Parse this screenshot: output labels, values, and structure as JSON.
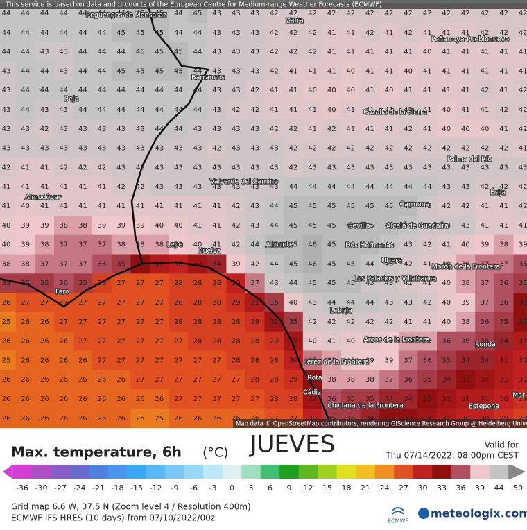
{
  "header": {
    "attribution": "This service is based on data and products of the European Centre for Medium-range Weather Forecasts (ECMWF)",
    "map_credit": "Map data © OpenStreetMap contributors, rendering GIScience Research Group @ Heidelberg University"
  },
  "grid": {
    "rows": [
      [
        44,
        44,
        44,
        44,
        44,
        44,
        44,
        45,
        45,
        44,
        45,
        43,
        43,
        43,
        42,
        42,
        42,
        42,
        42,
        42,
        42,
        42,
        42,
        42,
        42,
        42,
        42,
        42
      ],
      [
        44,
        44,
        44,
        44,
        44,
        44,
        45,
        45,
        45,
        44,
        44,
        43,
        43,
        43,
        42,
        42,
        42,
        41,
        41,
        42,
        41,
        42,
        41,
        41,
        41,
        42,
        42,
        42
      ],
      [
        44,
        44,
        43,
        43,
        44,
        44,
        44,
        45,
        45,
        45,
        44,
        43,
        43,
        43,
        42,
        42,
        42,
        41,
        41,
        41,
        41,
        41,
        40,
        41,
        41,
        41,
        41,
        41
      ],
      [
        43,
        44,
        44,
        43,
        44,
        44,
        45,
        45,
        45,
        45,
        44,
        43,
        43,
        43,
        42,
        41,
        41,
        41,
        40,
        41,
        41,
        40,
        41,
        41,
        41,
        41,
        41,
        41
      ],
      [
        43,
        44,
        44,
        44,
        44,
        44,
        44,
        44,
        44,
        44,
        44,
        43,
        43,
        42,
        41,
        41,
        40,
        40,
        40,
        41,
        40,
        41,
        41,
        41,
        41,
        42,
        41,
        42
      ],
      [
        43,
        44,
        43,
        43,
        44,
        44,
        44,
        44,
        44,
        44,
        44,
        43,
        42,
        42,
        41,
        41,
        41,
        40,
        41,
        41,
        41,
        42,
        41,
        40,
        41,
        41,
        42,
        42
      ],
      [
        43,
        43,
        42,
        43,
        43,
        43,
        43,
        43,
        44,
        44,
        43,
        43,
        43,
        43,
        42,
        42,
        41,
        42,
        41,
        41,
        41,
        42,
        41,
        40,
        40,
        40,
        41,
        42
      ],
      [
        43,
        43,
        43,
        43,
        43,
        43,
        43,
        43,
        43,
        43,
        43,
        42,
        43,
        43,
        43,
        42,
        42,
        42,
        42,
        42,
        42,
        42,
        42,
        42,
        42,
        42,
        42,
        41
      ],
      [
        42,
        41,
        41,
        42,
        42,
        42,
        43,
        43,
        43,
        43,
        43,
        43,
        43,
        43,
        43,
        42,
        43,
        43,
        43,
        43,
        43,
        43,
        43,
        43,
        43,
        43,
        43,
        43
      ],
      [
        41,
        41,
        41,
        41,
        41,
        41,
        42,
        42,
        43,
        43,
        43,
        43,
        43,
        43,
        43,
        44,
        44,
        44,
        44,
        44,
        44,
        44,
        44,
        43,
        43,
        42,
        42,
        42
      ],
      [
        41,
        40,
        41,
        41,
        41,
        41,
        41,
        41,
        41,
        41,
        41,
        41,
        42,
        43,
        44,
        45,
        45,
        45,
        45,
        45,
        45,
        45,
        43,
        42,
        42,
        41,
        41,
        42
      ],
      [
        40,
        39,
        39,
        38,
        38,
        39,
        39,
        39,
        40,
        40,
        41,
        41,
        42,
        43,
        44,
        45,
        45,
        45,
        45,
        45,
        45,
        44,
        43,
        43,
        43,
        41,
        41,
        41
      ],
      [
        40,
        39,
        38,
        37,
        37,
        37,
        38,
        38,
        38,
        39,
        40,
        41,
        42,
        44,
        45,
        45,
        46,
        45,
        45,
        45,
        44,
        43,
        42,
        41,
        40,
        39,
        38,
        39
      ],
      [
        38,
        38,
        37,
        37,
        37,
        36,
        35,
        33,
        31,
        30,
        32,
        34,
        39,
        42,
        44,
        45,
        46,
        45,
        45,
        44,
        43,
        42,
        41,
        40,
        38,
        37,
        37,
        36
      ],
      [
        35,
        35,
        35,
        36,
        35,
        28,
        27,
        27,
        27,
        28,
        28,
        28,
        30,
        37,
        43,
        44,
        45,
        45,
        45,
        43,
        43,
        42,
        41,
        40,
        38,
        37,
        36,
        35
      ],
      [
        26,
        27,
        27,
        27,
        27,
        27,
        27,
        27,
        27,
        28,
        28,
        28,
        29,
        31,
        35,
        40,
        43,
        44,
        44,
        44,
        43,
        43,
        42,
        40,
        39,
        37,
        36,
        33
      ],
      [
        25,
        26,
        26,
        27,
        27,
        27,
        27,
        27,
        27,
        28,
        28,
        28,
        28,
        29,
        32,
        35,
        42,
        42,
        42,
        42,
        42,
        41,
        41,
        40,
        38,
        36,
        35,
        33
      ],
      [
        26,
        26,
        26,
        26,
        27,
        27,
        27,
        27,
        27,
        27,
        28,
        28,
        28,
        28,
        29,
        32,
        40,
        41,
        40,
        40,
        39,
        38,
        38,
        36,
        36,
        35,
        34,
        31
      ],
      [
        25,
        26,
        26,
        26,
        26,
        27,
        27,
        27,
        27,
        27,
        27,
        27,
        28,
        28,
        28,
        30,
        37,
        38,
        40,
        39,
        39,
        37,
        36,
        35,
        34,
        34,
        31,
        30
      ],
      [
        26,
        26,
        26,
        26,
        26,
        26,
        26,
        27,
        27,
        27,
        27,
        27,
        27,
        28,
        28,
        29,
        33,
        38,
        38,
        38,
        37,
        36,
        35,
        34,
        33,
        32,
        31,
        30
      ],
      [
        26,
        26,
        26,
        26,
        26,
        26,
        26,
        26,
        26,
        27,
        27,
        27,
        27,
        27,
        28,
        28,
        32,
        36,
        35,
        35,
        34,
        34,
        33,
        32,
        31,
        31,
        30,
        29
      ],
      [
        26,
        26,
        26,
        26,
        26,
        26,
        26,
        25,
        25,
        26,
        26,
        26,
        26,
        26,
        27,
        27,
        30,
        35,
        35,
        34,
        33,
        33,
        32,
        31,
        30,
        30,
        29,
        28
      ]
    ]
  },
  "places": [
    "Reguengos de Monsaraz",
    "Zafra",
    "Peñarroya-Pueblonuevo",
    "Barrancos",
    "Beja",
    "Cazalla de la Sierra",
    "Palma del Río",
    "Valverde del Camino",
    "Écija",
    "Almodôvar",
    "Carmona",
    "Sevilla",
    "Alcalá de Guadaíra",
    "Lepe",
    "Huelva",
    "Almonte",
    "Dos Hermanas",
    "Utrera",
    "Morón de la Frontera",
    "Los Palacios y Villafranca",
    "Faro",
    "Lebrija",
    "Arcos de la Frontera",
    "Ronda",
    "Jerez de la Frontera",
    "Rota",
    "Cádiz",
    "Chiclana de la Frontera",
    "Estepona",
    "Mar"
  ],
  "legend": {
    "title": "Max. temperature, 6h",
    "unit": "(°C)",
    "day": "JUEVES",
    "valid_label": "Valid for",
    "valid_time": "Thu 07/14/2022, 08:00pm CEST",
    "ticks": [
      -36,
      -30,
      -27,
      -24,
      -21,
      -18,
      -15,
      -12,
      -9,
      -6,
      -3,
      0,
      3,
      6,
      9,
      12,
      15,
      18,
      21,
      24,
      27,
      30,
      33,
      36,
      39,
      44,
      50
    ],
    "colors": [
      "#d63fd6",
      "#b04ec8",
      "#8a5cc8",
      "#6a6ad0",
      "#5080e0",
      "#4a96ee",
      "#3aa8f8",
      "#58b8f8",
      "#7ac8f8",
      "#9ad8f8",
      "#bce8f8",
      "#dff0f0",
      "#a0e0c0",
      "#40c070",
      "#20a020",
      "#60b820",
      "#a0d020",
      "#e0e020",
      "#f0c020",
      "#f09020",
      "#e05020",
      "#c02020",
      "#901010",
      "#b05060",
      "#f0c8cc",
      "#c4c4c4",
      "#888888"
    ]
  },
  "footer": {
    "grid_info": "Grid map 6.6 W, 37.5 N (Zoom level 4 / Resolution 400m)",
    "model": "ECMWF IFS HRES (10 days) from 07/10/2022/00z",
    "ecmwf": "ECMWF",
    "brand": "meteologix.com"
  }
}
